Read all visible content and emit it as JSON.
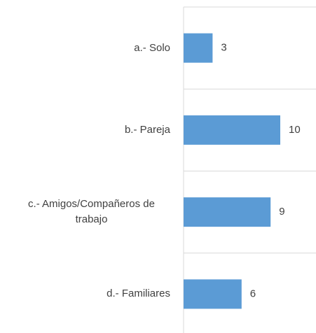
{
  "chart_data": {
    "type": "bar",
    "orientation": "horizontal",
    "categories": [
      "a.- Solo",
      "b.- Pareja",
      "c.- Amigos/Compañeros de trabajo",
      "d.- Familiares"
    ],
    "values": [
      3,
      10,
      9,
      6
    ],
    "color": "#5b9bd5",
    "grid": true
  }
}
